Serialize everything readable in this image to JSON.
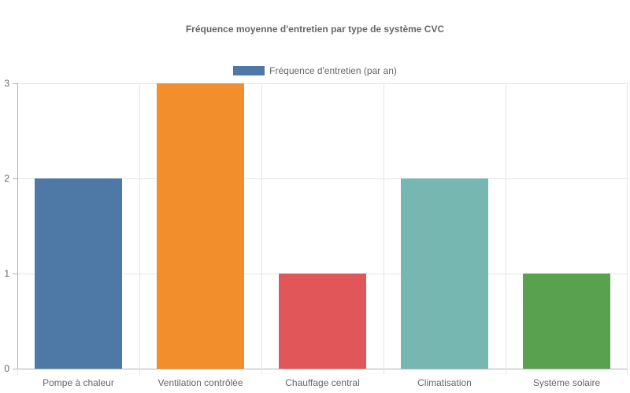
{
  "chart_data": {
    "type": "bar",
    "title": "Fréquence moyenne d'entretien par type de système CVC",
    "xlabel": "",
    "ylabel": "",
    "categories": [
      "Pompe à chaleur",
      "Ventilation contrôlée",
      "Chauffage central",
      "Climatisation",
      "Système solaire"
    ],
    "series": [
      {
        "name": "Fréquence d'entretien (par an)",
        "values": [
          2,
          3,
          1,
          2,
          1
        ],
        "colors": [
          "#4E79A7",
          "#F28E2B",
          "#E15759",
          "#76B7B2",
          "#59A14F"
        ]
      }
    ],
    "ylim": [
      0,
      3
    ],
    "yticks": [
      "0",
      "1",
      "2",
      "3"
    ],
    "grid": true,
    "legend_position": "top"
  },
  "legend": {
    "label": "Fréquence d'entretien (par an)",
    "color": "#4E79A7"
  }
}
